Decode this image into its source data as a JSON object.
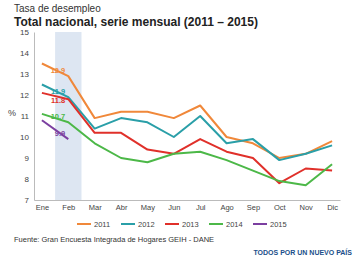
{
  "chart_data": {
    "type": "line",
    "title": "Tasa de desempleo",
    "subtitle": "Total nacional, serie mensual (2011 – 2015)",
    "y_label": "%",
    "categories": [
      "Ene",
      "Feb",
      "Mar",
      "Abr",
      "May",
      "Jun",
      "Jul",
      "Ago",
      "Sep",
      "Oct",
      "Nov",
      "Dic"
    ],
    "series": [
      {
        "name": "2011",
        "color": "#f0883a",
        "values": [
          13.5,
          12.9,
          10.9,
          11.2,
          11.2,
          10.9,
          11.5,
          10.0,
          9.7,
          9.0,
          9.2,
          9.8
        ],
        "value_labels": [
          null,
          "12.9",
          null,
          null,
          null,
          null,
          null,
          null,
          null,
          null,
          null,
          null
        ]
      },
      {
        "name": "2012",
        "color": "#2a9fa8",
        "values": [
          12.5,
          11.9,
          10.4,
          10.9,
          10.7,
          10.0,
          11.0,
          9.7,
          9.9,
          8.9,
          9.2,
          9.6
        ],
        "value_labels": [
          null,
          "11.9",
          null,
          null,
          null,
          null,
          null,
          null,
          null,
          null,
          null,
          null
        ]
      },
      {
        "name": "2013",
        "color": "#e0302a",
        "values": [
          12.1,
          11.8,
          10.2,
          10.2,
          9.4,
          9.2,
          9.9,
          9.3,
          9.0,
          7.8,
          8.5,
          8.4
        ],
        "value_labels": [
          null,
          "11.8",
          null,
          null,
          null,
          null,
          null,
          null,
          null,
          null,
          null,
          null
        ]
      },
      {
        "name": "2014",
        "color": "#4cb848",
        "values": [
          11.1,
          10.7,
          9.7,
          9.0,
          8.8,
          9.2,
          9.3,
          8.9,
          8.4,
          7.9,
          7.7,
          8.7
        ],
        "value_labels": [
          null,
          "10.7",
          null,
          null,
          null,
          null,
          null,
          null,
          null,
          null,
          null,
          null
        ]
      },
      {
        "name": "2015",
        "color": "#7b3fa0",
        "values": [
          10.8,
          9.9,
          null,
          null,
          null,
          null,
          null,
          null,
          null,
          null,
          null,
          null
        ],
        "value_labels": [
          null,
          "9.9",
          null,
          null,
          null,
          null,
          null,
          null,
          null,
          null,
          null,
          null
        ]
      }
    ],
    "ylim": [
      7,
      15
    ],
    "yticks": [
      7,
      8,
      9,
      10,
      11,
      12,
      13,
      14,
      15
    ],
    "grid": false,
    "legend": "bottom",
    "data_labels": true,
    "annotations": [
      "Fuente: Gran Encuesta Integrada de Hogares GEIH - DANE",
      "TODOS POR UN NUEVO PAÍS"
    ]
  }
}
